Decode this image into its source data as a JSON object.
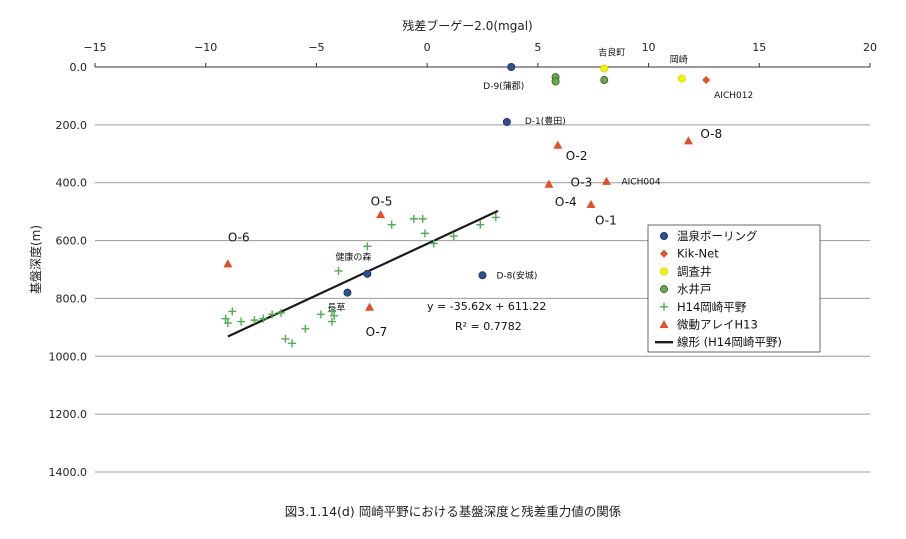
{
  "caption": "図3.1.14(d)  岡崎平野における基盤深度と残差重力値の関係",
  "chart_data": {
    "type": "scatter",
    "title": "",
    "xlabel": "残差ブーゲー2.0(mgal)",
    "ylabel": "基盤深度(m)",
    "xlim": [
      -15,
      20
    ],
    "ylim": [
      0,
      1400
    ],
    "y_reversed": true,
    "x_axis_position": "top",
    "grid": "horizontal",
    "legend_position": "right",
    "x_ticks": [
      "−15",
      "−10",
      "−5",
      "0",
      "5",
      "10",
      "15",
      "20"
    ],
    "y_ticks": [
      "0.0",
      "200.0",
      "400.0",
      "600.0",
      "800.0",
      "1000.0",
      "1200.0",
      "1400.0"
    ],
    "series": [
      {
        "name": "温泉ボーリング",
        "marker": "circle",
        "color": "#2f4f8f",
        "points": [
          {
            "x": 3.8,
            "y": 0,
            "label": "D-9(蒲郡)"
          },
          {
            "x": 3.6,
            "y": 190,
            "label": "D-1(豊田)"
          },
          {
            "x": 2.5,
            "y": 720,
            "label": "D-8(安城)"
          },
          {
            "x": -2.7,
            "y": 715,
            "label": "健康の森"
          },
          {
            "x": -3.6,
            "y": 780,
            "label": "長草"
          }
        ]
      },
      {
        "name": "Kik-Net",
        "marker": "diamond",
        "color": "#e0502a",
        "points": [
          {
            "x": 12.6,
            "y": 45,
            "label": "AICH012"
          }
        ]
      },
      {
        "name": "調査井",
        "marker": "circle",
        "color": "#f2f20a",
        "points": [
          {
            "x": 8.0,
            "y": 5,
            "label": "吉良町"
          },
          {
            "x": 11.5,
            "y": 40,
            "label": "岡崎"
          }
        ]
      },
      {
        "name": "水井戸",
        "marker": "circle",
        "color": "#6aa84f",
        "points": [
          {
            "x": 5.8,
            "y": 35
          },
          {
            "x": 5.8,
            "y": 50
          },
          {
            "x": 8.0,
            "y": 45
          }
        ]
      },
      {
        "name": "H14岡崎平野",
        "marker": "plus",
        "color": "#4cae4c",
        "points": [
          {
            "x": -9.0,
            "y": 885
          },
          {
            "x": -9.1,
            "y": 870
          },
          {
            "x": -8.8,
            "y": 845
          },
          {
            "x": -8.4,
            "y": 880
          },
          {
            "x": -7.8,
            "y": 875
          },
          {
            "x": -7.4,
            "y": 870
          },
          {
            "x": -7.0,
            "y": 855
          },
          {
            "x": -6.6,
            "y": 850
          },
          {
            "x": -6.4,
            "y": 940
          },
          {
            "x": -6.1,
            "y": 955
          },
          {
            "x": -5.5,
            "y": 905
          },
          {
            "x": -4.8,
            "y": 855
          },
          {
            "x": -4.3,
            "y": 880
          },
          {
            "x": -4.2,
            "y": 860
          },
          {
            "x": -4.3,
            "y": 845
          },
          {
            "x": -4.0,
            "y": 705
          },
          {
            "x": -2.7,
            "y": 620
          },
          {
            "x": -1.6,
            "y": 545
          },
          {
            "x": -0.6,
            "y": 525
          },
          {
            "x": -0.2,
            "y": 525
          },
          {
            "x": -0.1,
            "y": 575
          },
          {
            "x": 0.3,
            "y": 610
          },
          {
            "x": 1.2,
            "y": 585
          },
          {
            "x": 2.4,
            "y": 545
          },
          {
            "x": 3.1,
            "y": 520
          }
        ]
      },
      {
        "name": "微動アレイH13",
        "marker": "triangle",
        "color": "#e0502a",
        "points": [
          {
            "x": 5.9,
            "y": 270,
            "label": "O-2"
          },
          {
            "x": 11.8,
            "y": 255,
            "label": "O-8"
          },
          {
            "x": 8.1,
            "y": 395,
            "label": "O-3"
          },
          {
            "x": 5.5,
            "y": 405,
            "label": "O-4"
          },
          {
            "x": 7.4,
            "y": 475,
            "label": "O-1"
          },
          {
            "x": -2.1,
            "y": 510,
            "label": "O-5"
          },
          {
            "x": -9.0,
            "y": 680,
            "label": "O-6"
          },
          {
            "x": -2.6,
            "y": 830,
            "label": "O-7"
          }
        ]
      }
    ],
    "trendline": {
      "name": "線形 (H14岡崎平野)",
      "slope": -35.62,
      "intercept": 611.22,
      "x_range": [
        -9.0,
        3.2
      ],
      "equation": "y = -35.62x + 611.22",
      "r2": "R² = 0.7782"
    },
    "extra_labels": [
      {
        "text": "AICH004",
        "x": 8.1,
        "y": 395
      }
    ]
  }
}
